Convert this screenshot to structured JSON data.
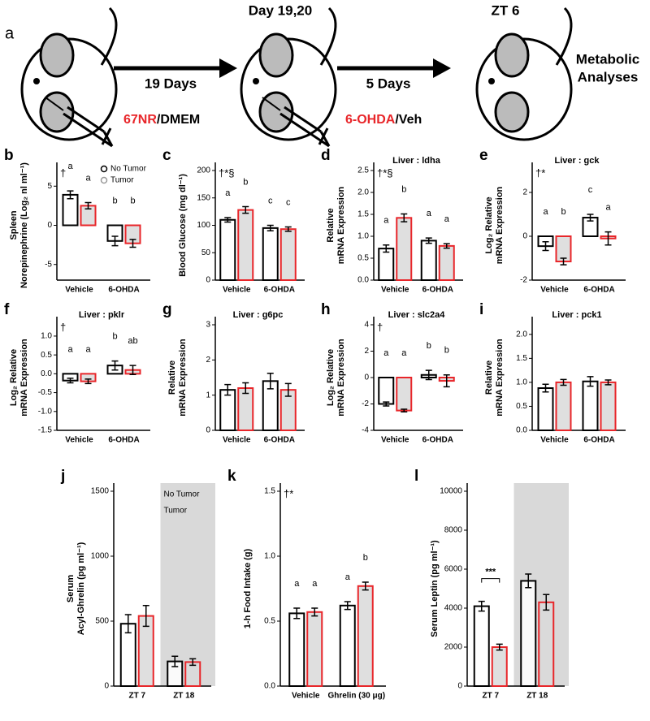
{
  "schematic": {
    "panel": "a",
    "stage_labels": [
      "Day 19,20",
      "ZT 6"
    ],
    "arrow_labels": [
      "19 Days",
      "5 Days"
    ],
    "injection_1": [
      "67NR",
      "/DMEM"
    ],
    "injection_2": [
      "6-OHDA",
      "/Veh"
    ],
    "outcome": [
      "Metabolic",
      "Analyses"
    ]
  },
  "chart_data": [
    {
      "type": "bar",
      "panel": "b",
      "ylabel": [
        "Spleen",
        "Norepinephrine (Log₂ nl ml⁻¹)"
      ],
      "annotation": "†",
      "categories": [
        "Vehicle",
        "6-OHDA"
      ],
      "ylim": [
        -7,
        7
      ],
      "yticks": [
        -5,
        0,
        5
      ],
      "legend": "upper right",
      "series": [
        {
          "name": "No Tumor",
          "color": "#000000",
          "values": [
            3.9,
            -2.0
          ],
          "errors": [
            0.5,
            0.6
          ],
          "letters": [
            "a",
            "b"
          ]
        },
        {
          "name": "Tumor",
          "color": "#e8262a",
          "values": [
            2.5,
            -2.3
          ],
          "errors": [
            0.4,
            0.5
          ],
          "letters": [
            "a",
            "b"
          ]
        }
      ]
    },
    {
      "type": "bar",
      "panel": "c",
      "ylabel": [
        "Blood Glucose (mg dl⁻¹)"
      ],
      "annotation": "†*§",
      "categories": [
        "Vehicle",
        "6-OHDA"
      ],
      "ylim": [
        0,
        200
      ],
      "yticks": [
        0,
        50,
        100,
        150,
        200
      ],
      "series": [
        {
          "name": "No Tumor",
          "color": "#000000",
          "values": [
            110,
            95
          ],
          "errors": [
            4,
            5
          ],
          "letters": [
            "a",
            "c"
          ]
        },
        {
          "name": "Tumor",
          "color": "#e8262a",
          "values": [
            128,
            93
          ],
          "errors": [
            6,
            4
          ],
          "letters": [
            "b",
            "c"
          ]
        }
      ]
    },
    {
      "type": "bar",
      "panel": "d",
      "title": "Liver : ldha",
      "ylabel": [
        "Relative",
        "mRNA Expression"
      ],
      "annotation": "†*§",
      "categories": [
        "Vehicle",
        "6-OHDA"
      ],
      "ylim": [
        0,
        2.5
      ],
      "yticks": [
        {
          "value": 0,
          "label": "0.0"
        },
        0.5,
        {
          "value": 1,
          "label": "1.0"
        },
        1.5,
        {
          "value": 2,
          "label": "2.0"
        },
        2.5
      ],
      "series": [
        {
          "name": "No Tumor",
          "color": "#000000",
          "values": [
            0.72,
            0.9
          ],
          "errors": [
            0.08,
            0.06
          ],
          "letters": [
            "a",
            "a"
          ]
        },
        {
          "name": "Tumor",
          "color": "#e8262a",
          "values": [
            1.42,
            0.78
          ],
          "errors": [
            0.09,
            0.05
          ],
          "letters": [
            "b",
            "a"
          ]
        }
      ]
    },
    {
      "type": "bar",
      "panel": "e",
      "title": "Liver : gck",
      "ylabel": [
        "Log₂ Relative",
        "mRNA Expression"
      ],
      "annotation": "†*",
      "categories": [
        "Vehicle",
        "6-OHDA"
      ],
      "ylim": [
        -2,
        3
      ],
      "yticks": [
        -2,
        0,
        2
      ],
      "series": [
        {
          "name": "No Tumor",
          "color": "#000000",
          "values": [
            -0.45,
            0.85
          ],
          "errors": [
            0.2,
            0.15
          ],
          "letters": [
            "a",
            "c"
          ]
        },
        {
          "name": "Tumor",
          "color": "#e8262a",
          "values": [
            -1.15,
            -0.1
          ],
          "errors": [
            0.15,
            0.3
          ],
          "letters": [
            "b",
            "a"
          ]
        }
      ]
    },
    {
      "type": "bar",
      "panel": "f",
      "title": "Liver : pklr",
      "ylabel": [
        "Log₂ Relative",
        "mRNA Expression"
      ],
      "annotation": "†",
      "categories": [
        "Vehicle",
        "6-OHDA"
      ],
      "ylim": [
        -1.5,
        1.3
      ],
      "yticks": [
        {
          "value": -1.5,
          "label": "-1.5"
        },
        {
          "value": -1,
          "label": "-1.0"
        },
        -0.5,
        {
          "value": 0,
          "label": "0.0"
        },
        0.5,
        {
          "value": 1,
          "label": "1.0"
        }
      ],
      "series": [
        {
          "name": "No Tumor",
          "color": "#000000",
          "values": [
            -0.18,
            0.22
          ],
          "errors": [
            0.06,
            0.12
          ],
          "letters": [
            "a",
            "b"
          ]
        },
        {
          "name": "Tumor",
          "color": "#e8262a",
          "values": [
            -0.2,
            0.1
          ],
          "errors": [
            0.06,
            0.12
          ],
          "letters": [
            "a",
            "ab"
          ]
        }
      ]
    },
    {
      "type": "bar",
      "panel": "g",
      "title": "Liver : g6pc",
      "ylabel": [
        "Relative",
        "mRNA Expression"
      ],
      "categories": [
        "Vehicle",
        "6-OHDA"
      ],
      "ylim": [
        0,
        3
      ],
      "yticks": [
        0,
        1,
        2,
        3
      ],
      "series": [
        {
          "name": "No Tumor",
          "color": "#000000",
          "values": [
            1.15,
            1.4
          ],
          "errors": [
            0.15,
            0.22
          ],
          "letters": []
        },
        {
          "name": "Tumor",
          "color": "#e8262a",
          "values": [
            1.2,
            1.15
          ],
          "errors": [
            0.15,
            0.18
          ],
          "letters": []
        }
      ]
    },
    {
      "type": "bar",
      "panel": "h",
      "title": "Liver : slc2a4",
      "ylabel": [
        "Log₂ Relative",
        "mRNA Expression"
      ],
      "annotation": "†",
      "categories": [
        "Vehicle",
        "6-OHDA"
      ],
      "ylim": [
        -4,
        4
      ],
      "yticks": [
        -4,
        -2,
        0,
        2,
        4
      ],
      "series": [
        {
          "name": "No Tumor",
          "color": "#000000",
          "values": [
            -2.0,
            0.2
          ],
          "errors": [
            0.15,
            0.35
          ],
          "letters": [
            "a",
            "b"
          ]
        },
        {
          "name": "Tumor",
          "color": "#e8262a",
          "values": [
            -2.5,
            -0.25
          ],
          "errors": [
            0.1,
            0.45
          ],
          "letters": [
            "a",
            "b"
          ]
        }
      ]
    },
    {
      "type": "bar",
      "panel": "i",
      "title": "Liver : pck1",
      "ylabel": [
        "Relative",
        "mRNA Expression"
      ],
      "categories": [
        "Vehicle",
        "6-OHDA"
      ],
      "ylim": [
        0,
        2.2
      ],
      "yticks": [
        {
          "value": 0,
          "label": "0.0"
        },
        0.5,
        {
          "value": 1,
          "label": "1.0"
        },
        1.5,
        {
          "value": 2,
          "label": "2.0"
        }
      ],
      "series": [
        {
          "name": "No Tumor",
          "color": "#000000",
          "values": [
            0.88,
            1.02
          ],
          "errors": [
            0.08,
            0.1
          ],
          "letters": []
        },
        {
          "name": "Tumor",
          "color": "#e8262a",
          "values": [
            1.0,
            1.0
          ],
          "errors": [
            0.06,
            0.05
          ],
          "letters": []
        }
      ]
    },
    {
      "type": "bar",
      "panel": "j",
      "ylabel": [
        "Serum",
        "Acyl-Ghrelin (pg ml⁻¹)"
      ],
      "shaded": true,
      "legend": "shaded",
      "categories": [
        "ZT 7",
        "ZT 18"
      ],
      "ylim": [
        0,
        1500
      ],
      "yticks": [
        0,
        500,
        1000,
        1500
      ],
      "series": [
        {
          "name": "No Tumor",
          "color": "#000000",
          "values": [
            480,
            190
          ],
          "errors": [
            70,
            40
          ],
          "letters": []
        },
        {
          "name": "Tumor",
          "color": "#e8262a",
          "values": [
            540,
            185
          ],
          "errors": [
            80,
            25
          ],
          "letters": []
        }
      ]
    },
    {
      "type": "bar",
      "panel": "k",
      "ylabel": [
        "1-h Food Intake (g)"
      ],
      "annotation": "†*",
      "categories": [
        "Vehicle",
        "Ghrelin (30 μg)"
      ],
      "ylim": [
        0,
        1.5
      ],
      "yticks": [
        {
          "value": 0,
          "label": "0.0"
        },
        0.5,
        {
          "value": 1,
          "label": "1.0"
        },
        1.5
      ],
      "series": [
        {
          "name": "No Tumor",
          "color": "#000000",
          "values": [
            0.56,
            0.62
          ],
          "errors": [
            0.04,
            0.03
          ],
          "letters": [
            "a",
            "a"
          ]
        },
        {
          "name": "Tumor",
          "color": "#e8262a",
          "values": [
            0.57,
            0.77
          ],
          "errors": [
            0.03,
            0.03
          ],
          "letters": [
            "a",
            "b"
          ]
        }
      ]
    },
    {
      "type": "bar",
      "panel": "l",
      "ylabel": [
        "Serum Leptin (pg ml⁻¹)"
      ],
      "shaded": true,
      "significance": "***",
      "categories": [
        "ZT 7",
        "ZT 18"
      ],
      "ylim": [
        0,
        10000
      ],
      "yticks": [
        0,
        2000,
        4000,
        6000,
        8000,
        10000
      ],
      "series": [
        {
          "name": "No Tumor",
          "color": "#000000",
          "values": [
            4100,
            5400
          ],
          "errors": [
            250,
            350
          ],
          "letters": []
        },
        {
          "name": "Tumor",
          "color": "#e8262a",
          "values": [
            2000,
            4300
          ],
          "errors": [
            150,
            400
          ],
          "letters": []
        }
      ]
    }
  ]
}
